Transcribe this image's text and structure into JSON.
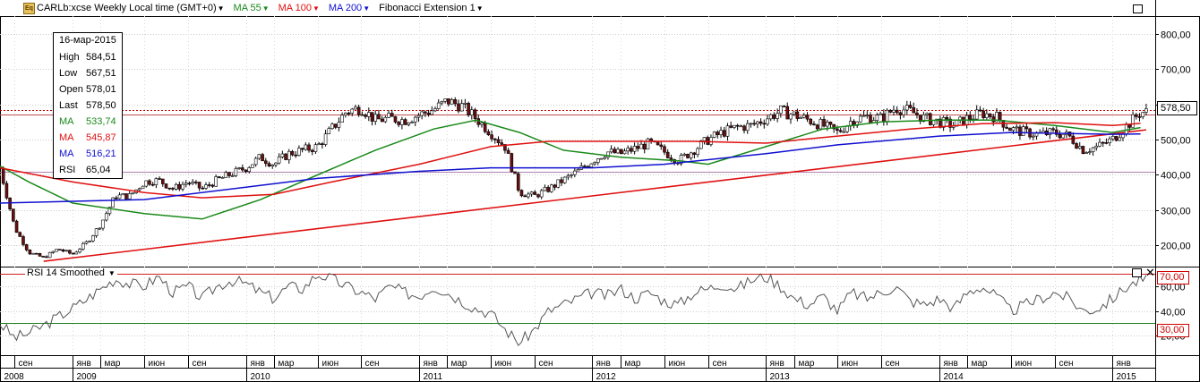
{
  "toolbar": {
    "icon_label": "Eq",
    "symbol_title": "CARLb:xcse Weekly Local time (GMT+0)",
    "ma55_label": "MA 55",
    "ma100_label": "MA 100",
    "ma200_label": "MA 200",
    "fib_label": "Fibonacci Extension 1"
  },
  "colors": {
    "ma55": "#1a8a1a",
    "ma100": "#e01010",
    "ma200": "#1010d0",
    "trendline": "#e01010",
    "candle_up": "#ffffff",
    "candle_down": "#6b1010",
    "rsi_line": "#555555",
    "rsi_70": "#d02020",
    "rsi_30": "#208020"
  },
  "legend": {
    "date": "16-мар-2015",
    "rows": [
      {
        "label": "High",
        "value": "584,51",
        "color": "#000000"
      },
      {
        "label": "Low",
        "value": "567,51",
        "color": "#000000"
      },
      {
        "label": "Open",
        "value": "578,01",
        "color": "#000000"
      },
      {
        "label": "Last",
        "value": "578,50",
        "color": "#000000"
      },
      {
        "label": "MA",
        "value": "533,74",
        "color": "#1a8a1a"
      },
      {
        "label": "MA",
        "value": "545,87",
        "color": "#e01010"
      },
      {
        "label": "MA",
        "value": "516,21",
        "color": "#1010d0"
      },
      {
        "label": "RSI",
        "value": "65,04",
        "color": "#000000"
      }
    ]
  },
  "rsi_panel": {
    "title": "RSI 14 Smoothed",
    "upper_tag": "70,00",
    "lower_tag": "30,00"
  },
  "last_price_tag": "578,50",
  "chart_data": {
    "type": "candlestick",
    "price_axis": {
      "ticks": [
        200,
        300,
        400,
        500,
        600,
        700,
        800
      ],
      "tick_labels": [
        "200,00",
        "300,00",
        "400,00",
        "500,00",
        "600,00",
        "700,00",
        "800,00"
      ],
      "ylim": [
        140,
        850
      ]
    },
    "rsi_axis": {
      "ticks": [
        20,
        40,
        60
      ],
      "tick_labels": [
        "20,00",
        "40,00",
        "60,00"
      ],
      "levels": [
        70,
        30
      ],
      "ylim": [
        4,
        76
      ]
    },
    "time_axis": {
      "start": "2008-08-01",
      "end": "2015-04-01",
      "months": [
        {
          "date": "2008-09-01",
          "label": "сен"
        },
        {
          "date": "2009-01-01",
          "label": "янв"
        },
        {
          "date": "2009-03-01",
          "label": "мар"
        },
        {
          "date": "2009-06-01",
          "label": "июн"
        },
        {
          "date": "2009-09-01",
          "label": "сен"
        },
        {
          "date": "2010-01-01",
          "label": "янв"
        },
        {
          "date": "2010-03-01",
          "label": "мар"
        },
        {
          "date": "2010-06-01",
          "label": "июн"
        },
        {
          "date": "2010-09-01",
          "label": "сен"
        },
        {
          "date": "2011-01-01",
          "label": "янв"
        },
        {
          "date": "2011-03-01",
          "label": "мар"
        },
        {
          "date": "2011-06-01",
          "label": "июн"
        },
        {
          "date": "2011-09-01",
          "label": "сен"
        },
        {
          "date": "2012-01-01",
          "label": "янв"
        },
        {
          "date": "2012-03-01",
          "label": "мар"
        },
        {
          "date": "2012-06-01",
          "label": "июн"
        },
        {
          "date": "2012-09-01",
          "label": "сен"
        },
        {
          "date": "2013-01-01",
          "label": "янв"
        },
        {
          "date": "2013-03-01",
          "label": "мар"
        },
        {
          "date": "2013-06-01",
          "label": "июн"
        },
        {
          "date": "2013-09-01",
          "label": "сен"
        },
        {
          "date": "2014-01-01",
          "label": "янв"
        },
        {
          "date": "2014-03-01",
          "label": "мар"
        },
        {
          "date": "2014-06-01",
          "label": "июн"
        },
        {
          "date": "2014-09-01",
          "label": "сен"
        },
        {
          "date": "2015-01-01",
          "label": "янв"
        }
      ],
      "years": [
        {
          "date": "2008-08-01",
          "label": "2008"
        },
        {
          "date": "2009-01-01",
          "label": "2009"
        },
        {
          "date": "2010-01-01",
          "label": "2010"
        },
        {
          "date": "2011-01-01",
          "label": "2011"
        },
        {
          "date": "2012-01-01",
          "label": "2012"
        },
        {
          "date": "2013-01-01",
          "label": "2013"
        },
        {
          "date": "2014-01-01",
          "label": "2014"
        },
        {
          "date": "2015-01-01",
          "label": "2015"
        }
      ]
    },
    "price_keypoints": [
      [
        "2008-08-01",
        420
      ],
      [
        "2008-09-01",
        250
      ],
      [
        "2008-10-01",
        180
      ],
      [
        "2008-11-01",
        165
      ],
      [
        "2008-12-01",
        190
      ],
      [
        "2009-01-01",
        175
      ],
      [
        "2009-02-01",
        210
      ],
      [
        "2009-03-01",
        260
      ],
      [
        "2009-04-01",
        340
      ],
      [
        "2009-05-01",
        340
      ],
      [
        "2009-06-01",
        380
      ],
      [
        "2009-07-01",
        385
      ],
      [
        "2009-08-01",
        360
      ],
      [
        "2009-09-01",
        380
      ],
      [
        "2009-10-01",
        360
      ],
      [
        "2009-11-01",
        385
      ],
      [
        "2010-01-01",
        420
      ],
      [
        "2010-02-01",
        450
      ],
      [
        "2010-03-01",
        430
      ],
      [
        "2010-04-01",
        460
      ],
      [
        "2010-05-01",
        470
      ],
      [
        "2010-06-01",
        480
      ],
      [
        "2010-07-01",
        530
      ],
      [
        "2010-08-01",
        580
      ],
      [
        "2010-09-01",
        590
      ],
      [
        "2010-10-01",
        555
      ],
      [
        "2010-11-01",
        560
      ],
      [
        "2010-12-01",
        555
      ],
      [
        "2011-01-01",
        570
      ],
      [
        "2011-02-01",
        585
      ],
      [
        "2011-03-01",
        610
      ],
      [
        "2011-04-01",
        595
      ],
      [
        "2011-05-01",
        560
      ],
      [
        "2011-06-01",
        520
      ],
      [
        "2011-07-01",
        480
      ],
      [
        "2011-08-01",
        350
      ],
      [
        "2011-09-01",
        340
      ],
      [
        "2011-10-01",
        360
      ],
      [
        "2011-11-01",
        385
      ],
      [
        "2011-12-01",
        410
      ],
      [
        "2012-01-01",
        440
      ],
      [
        "2012-02-01",
        465
      ],
      [
        "2012-03-01",
        460
      ],
      [
        "2012-04-01",
        475
      ],
      [
        "2012-05-01",
        490
      ],
      [
        "2012-06-01",
        465
      ],
      [
        "2012-07-01",
        440
      ],
      [
        "2012-08-01",
        470
      ],
      [
        "2012-09-01",
        500
      ],
      [
        "2012-10-01",
        520
      ],
      [
        "2012-11-01",
        535
      ],
      [
        "2012-12-01",
        540
      ],
      [
        "2013-01-01",
        560
      ],
      [
        "2013-02-01",
        580
      ],
      [
        "2013-03-01",
        570
      ],
      [
        "2013-04-01",
        555
      ],
      [
        "2013-05-01",
        540
      ],
      [
        "2013-06-01",
        520
      ],
      [
        "2013-07-01",
        555
      ],
      [
        "2013-08-01",
        565
      ],
      [
        "2013-09-01",
        560
      ],
      [
        "2013-10-01",
        590
      ],
      [
        "2013-11-01",
        580
      ],
      [
        "2013-12-01",
        560
      ],
      [
        "2014-01-01",
        550
      ],
      [
        "2014-02-01",
        540
      ],
      [
        "2014-03-01",
        560
      ],
      [
        "2014-04-01",
        575
      ],
      [
        "2014-05-01",
        565
      ],
      [
        "2014-06-01",
        530
      ],
      [
        "2014-07-01",
        520
      ],
      [
        "2014-08-01",
        515
      ],
      [
        "2014-09-01",
        520
      ],
      [
        "2014-10-01",
        510
      ],
      [
        "2014-11-01",
        470
      ],
      [
        "2014-12-01",
        480
      ],
      [
        "2015-01-01",
        500
      ],
      [
        "2015-02-01",
        540
      ],
      [
        "2015-03-01",
        578
      ]
    ],
    "ma55": [
      [
        "2008-08-01",
        425
      ],
      [
        "2008-10-01",
        380
      ],
      [
        "2009-01-01",
        320
      ],
      [
        "2009-06-01",
        290
      ],
      [
        "2009-10-01",
        275
      ],
      [
        "2010-02-01",
        330
      ],
      [
        "2010-06-01",
        400
      ],
      [
        "2010-10-01",
        470
      ],
      [
        "2011-02-01",
        530
      ],
      [
        "2011-05-01",
        555
      ],
      [
        "2011-08-01",
        520
      ],
      [
        "2011-11-01",
        470
      ],
      [
        "2012-03-01",
        450
      ],
      [
        "2012-07-01",
        440
      ],
      [
        "2012-09-01",
        430
      ],
      [
        "2013-01-01",
        480
      ],
      [
        "2013-05-01",
        530
      ],
      [
        "2013-09-01",
        550
      ],
      [
        "2014-01-01",
        555
      ],
      [
        "2014-05-01",
        555
      ],
      [
        "2014-09-01",
        540
      ],
      [
        "2015-01-01",
        520
      ],
      [
        "2015-03-01",
        534
      ]
    ],
    "ma100": [
      [
        "2008-08-01",
        420
      ],
      [
        "2009-01-01",
        380
      ],
      [
        "2009-06-01",
        350
      ],
      [
        "2009-10-01",
        335
      ],
      [
        "2010-03-01",
        345
      ],
      [
        "2010-07-01",
        380
      ],
      [
        "2011-01-01",
        430
      ],
      [
        "2011-06-01",
        480
      ],
      [
        "2011-10-01",
        495
      ],
      [
        "2012-03-01",
        495
      ],
      [
        "2012-08-01",
        495
      ],
      [
        "2013-01-01",
        490
      ],
      [
        "2013-06-01",
        510
      ],
      [
        "2013-11-01",
        530
      ],
      [
        "2014-04-01",
        545
      ],
      [
        "2014-09-01",
        548
      ],
      [
        "2015-01-01",
        540
      ],
      [
        "2015-03-01",
        546
      ]
    ],
    "ma200": [
      [
        "2008-08-01",
        320
      ],
      [
        "2009-06-01",
        330
      ],
      [
        "2010-01-01",
        365
      ],
      [
        "2010-06-01",
        390
      ],
      [
        "2011-01-01",
        410
      ],
      [
        "2011-06-01",
        420
      ],
      [
        "2012-01-01",
        420
      ],
      [
        "2012-06-01",
        430
      ],
      [
        "2013-01-01",
        460
      ],
      [
        "2013-06-01",
        485
      ],
      [
        "2014-01-01",
        510
      ],
      [
        "2014-06-01",
        520
      ],
      [
        "2015-01-01",
        515
      ],
      [
        "2015-03-01",
        516
      ]
    ],
    "trendline": [
      [
        "2008-11-01",
        155
      ],
      [
        "2015-03-15",
        520
      ]
    ],
    "horizontal_levels": [
      {
        "value": 583,
        "color": "#c00000",
        "style": "dotted"
      },
      {
        "value": 570,
        "color": "#c05050",
        "style": "solid"
      },
      {
        "value": 408,
        "color": "#b080b0",
        "style": "solid"
      }
    ],
    "rsi_keypoints": [
      [
        "2008-08-01",
        30
      ],
      [
        "2008-09-01",
        18
      ],
      [
        "2008-10-01",
        22
      ],
      [
        "2008-11-01",
        28
      ],
      [
        "2008-12-01",
        35
      ],
      [
        "2009-01-01",
        42
      ],
      [
        "2009-02-01",
        50
      ],
      [
        "2009-03-01",
        58
      ],
      [
        "2009-04-01",
        66
      ],
      [
        "2009-05-01",
        62
      ],
      [
        "2009-06-01",
        60
      ],
      [
        "2009-07-01",
        68
      ],
      [
        "2009-08-01",
        55
      ],
      [
        "2009-09-01",
        60
      ],
      [
        "2009-10-01",
        50
      ],
      [
        "2009-11-01",
        60
      ],
      [
        "2009-12-01",
        65
      ],
      [
        "2010-01-01",
        62
      ],
      [
        "2010-02-01",
        55
      ],
      [
        "2010-03-01",
        50
      ],
      [
        "2010-04-01",
        60
      ],
      [
        "2010-05-01",
        58
      ],
      [
        "2010-06-01",
        70
      ],
      [
        "2010-07-01",
        66
      ],
      [
        "2010-08-01",
        60
      ],
      [
        "2010-09-01",
        55
      ],
      [
        "2010-10-01",
        50
      ],
      [
        "2010-11-01",
        60
      ],
      [
        "2010-12-01",
        55
      ],
      [
        "2011-01-01",
        52
      ],
      [
        "2011-02-01",
        60
      ],
      [
        "2011-03-01",
        55
      ],
      [
        "2011-04-01",
        48
      ],
      [
        "2011-05-01",
        42
      ],
      [
        "2011-06-01",
        38
      ],
      [
        "2011-07-01",
        25
      ],
      [
        "2011-08-01",
        14
      ],
      [
        "2011-09-01",
        25
      ],
      [
        "2011-10-01",
        40
      ],
      [
        "2011-11-01",
        45
      ],
      [
        "2011-12-01",
        50
      ],
      [
        "2012-01-01",
        55
      ],
      [
        "2012-02-01",
        52
      ],
      [
        "2012-03-01",
        58
      ],
      [
        "2012-04-01",
        50
      ],
      [
        "2012-05-01",
        55
      ],
      [
        "2012-06-01",
        48
      ],
      [
        "2012-07-01",
        45
      ],
      [
        "2012-08-01",
        55
      ],
      [
        "2012-09-01",
        58
      ],
      [
        "2012-10-01",
        62
      ],
      [
        "2012-11-01",
        58
      ],
      [
        "2012-12-01",
        65
      ],
      [
        "2013-01-01",
        68
      ],
      [
        "2013-02-01",
        60
      ],
      [
        "2013-03-01",
        50
      ],
      [
        "2013-04-01",
        45
      ],
      [
        "2013-05-01",
        52
      ],
      [
        "2013-06-01",
        40
      ],
      [
        "2013-07-01",
        55
      ],
      [
        "2013-08-01",
        50
      ],
      [
        "2013-09-01",
        55
      ],
      [
        "2013-10-01",
        60
      ],
      [
        "2013-11-01",
        48
      ],
      [
        "2013-12-01",
        45
      ],
      [
        "2014-01-01",
        50
      ],
      [
        "2014-02-01",
        42
      ],
      [
        "2014-03-01",
        55
      ],
      [
        "2014-04-01",
        60
      ],
      [
        "2014-05-01",
        52
      ],
      [
        "2014-06-01",
        40
      ],
      [
        "2014-07-01",
        45
      ],
      [
        "2014-08-01",
        50
      ],
      [
        "2014-09-01",
        55
      ],
      [
        "2014-10-01",
        50
      ],
      [
        "2014-11-01",
        40
      ],
      [
        "2014-12-01",
        42
      ],
      [
        "2015-01-01",
        50
      ],
      [
        "2015-02-01",
        60
      ],
      [
        "2015-03-01",
        65
      ]
    ]
  }
}
